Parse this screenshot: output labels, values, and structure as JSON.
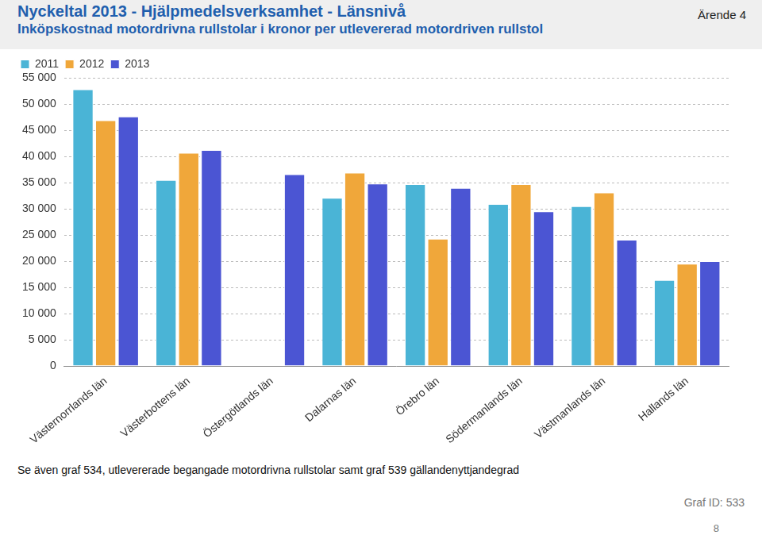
{
  "chart_data": {
    "type": "bar",
    "title": "Nyckeltal 2013 - Hjälpmedelsverksamhet - Länsnivå",
    "subtitle": "Inköpskostnad motordrivna rullstolar i kronor per utlevererad motordriven rullstol",
    "annotations": {
      "case": "Ärende 4",
      "note": "Se även graf 534, utlevererade begangade motordrivna rullstolar samt graf 539 gällandenyttjandegrad",
      "graph_id": "Graf ID: 533",
      "page": "8"
    },
    "categories": [
      "Västernorrlands län",
      "Västerbottens län",
      "Östergötlands län",
      "Dalarnas län",
      "Örebro län",
      "Södermanlands län",
      "Västmanlands län",
      "Hallands län"
    ],
    "series": [
      {
        "name": "2011",
        "color": "#4ab4d6",
        "values": [
          52800,
          35500,
          null,
          32100,
          34700,
          30900,
          30500,
          16400
        ]
      },
      {
        "name": "2012",
        "color": "#f0a73a",
        "values": [
          46900,
          40700,
          null,
          36900,
          24300,
          34700,
          33100,
          19500
        ]
      },
      {
        "name": "2013",
        "color": "#4b55d3",
        "values": [
          47600,
          41200,
          36600,
          34800,
          34000,
          29500,
          24100,
          20000
        ]
      }
    ],
    "ylim": [
      0,
      55000
    ],
    "yticks": [
      0,
      {
        "value": 5000,
        "label": "5 000"
      },
      {
        "value": 10000,
        "label": "10 000"
      },
      {
        "value": 15000,
        "label": "15 000"
      },
      {
        "value": 20000,
        "label": "20 000"
      },
      {
        "value": 25000,
        "label": "25 000"
      },
      {
        "value": 30000,
        "label": "30 000"
      },
      {
        "value": 35000,
        "label": "35 000"
      },
      {
        "value": 40000,
        "label": "40 000"
      },
      {
        "value": 45000,
        "label": "45 000"
      },
      {
        "value": 50000,
        "label": "50 000"
      },
      {
        "value": 55000,
        "label": "55 000"
      }
    ],
    "grid": true,
    "legend": "top-left"
  }
}
